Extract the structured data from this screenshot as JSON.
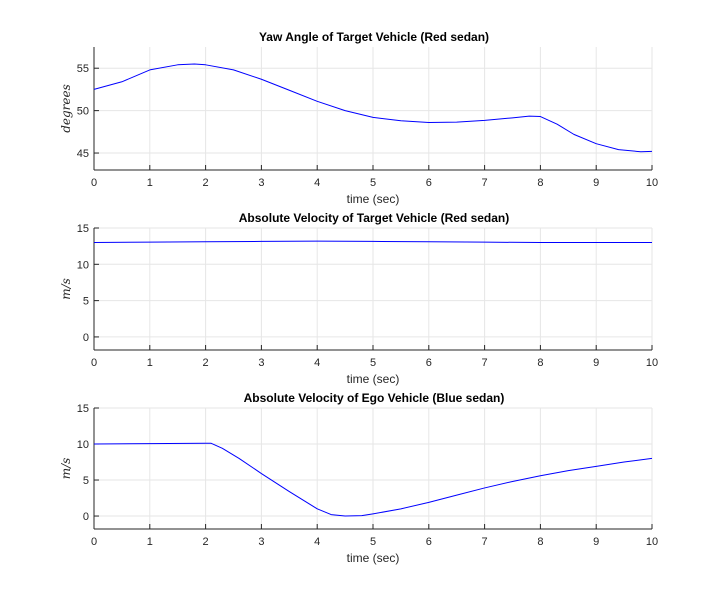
{
  "chart_data": [
    {
      "type": "line",
      "title": "Yaw Angle of Target Vehicle (Red sedan)",
      "xlabel": "time (sec)",
      "ylabel": "degrees",
      "xlim": [
        0,
        10
      ],
      "ylim": [
        43,
        57.5
      ],
      "xticks": [
        "0",
        "1",
        "2",
        "3",
        "4",
        "5",
        "6",
        "7",
        "8",
        "9",
        "10"
      ],
      "yticks": [
        45,
        50,
        55
      ],
      "ytick_labels": [
        "45",
        "50",
        "55"
      ],
      "grid": true,
      "series_color": "#0000ff",
      "x": [
        0,
        0.5,
        1,
        1.5,
        1.8,
        2,
        2.5,
        3,
        3.5,
        4,
        4.5,
        5,
        5.5,
        6,
        6.5,
        7,
        7.5,
        7.8,
        8,
        8.3,
        8.6,
        9,
        9.4,
        9.8,
        10
      ],
      "y": [
        52.5,
        53.4,
        54.8,
        55.4,
        55.5,
        55.4,
        54.8,
        53.7,
        52.4,
        51.1,
        50.0,
        49.2,
        48.8,
        48.6,
        48.65,
        48.85,
        49.15,
        49.35,
        49.3,
        48.4,
        47.2,
        46.1,
        45.4,
        45.15,
        45.2
      ]
    },
    {
      "type": "line",
      "title": "Absolute Velocity of Target Vehicle (Red sedan)",
      "xlabel": "time (sec)",
      "ylabel": "m/s",
      "xlim": [
        0,
        10
      ],
      "ylim": [
        -1.8,
        15
      ],
      "xticks": [
        "0",
        "1",
        "2",
        "3",
        "4",
        "5",
        "6",
        "7",
        "8",
        "9",
        "10"
      ],
      "yticks": [
        0,
        5,
        10,
        15
      ],
      "ytick_labels": [
        "0",
        "5",
        "10",
        "15"
      ],
      "grid": true,
      "series_color": "#0000ff",
      "x": [
        0,
        1,
        2,
        3,
        4,
        5,
        6,
        7,
        8,
        9,
        10
      ],
      "y": [
        13.0,
        13.05,
        13.1,
        13.15,
        13.2,
        13.15,
        13.1,
        13.05,
        13.0,
        13.0,
        13.0
      ]
    },
    {
      "type": "line",
      "title": "Absolute Velocity of Ego Vehicle (Blue sedan)",
      "xlabel": "time (sec)",
      "ylabel": "m/s",
      "xlim": [
        0,
        10
      ],
      "ylim": [
        -1.8,
        15
      ],
      "xticks": [
        "0",
        "1",
        "2",
        "3",
        "4",
        "5",
        "6",
        "7",
        "8",
        "9",
        "10"
      ],
      "yticks": [
        0,
        5,
        10,
        15
      ],
      "ytick_labels": [
        "0",
        "5",
        "10",
        "15"
      ],
      "grid": true,
      "series_color": "#0000ff",
      "x": [
        0,
        1,
        2,
        2.1,
        2.3,
        2.6,
        3,
        3.5,
        4,
        4.25,
        4.5,
        4.8,
        5,
        5.5,
        6,
        6.5,
        7,
        7.5,
        8,
        8.5,
        9,
        9.5,
        10
      ],
      "y": [
        10.0,
        10.05,
        10.1,
        10.1,
        9.4,
        8.0,
        5.9,
        3.4,
        1.0,
        0.2,
        0.0,
        0.05,
        0.3,
        1.0,
        1.9,
        2.9,
        3.9,
        4.8,
        5.6,
        6.3,
        6.9,
        7.5,
        8.0
      ]
    }
  ]
}
